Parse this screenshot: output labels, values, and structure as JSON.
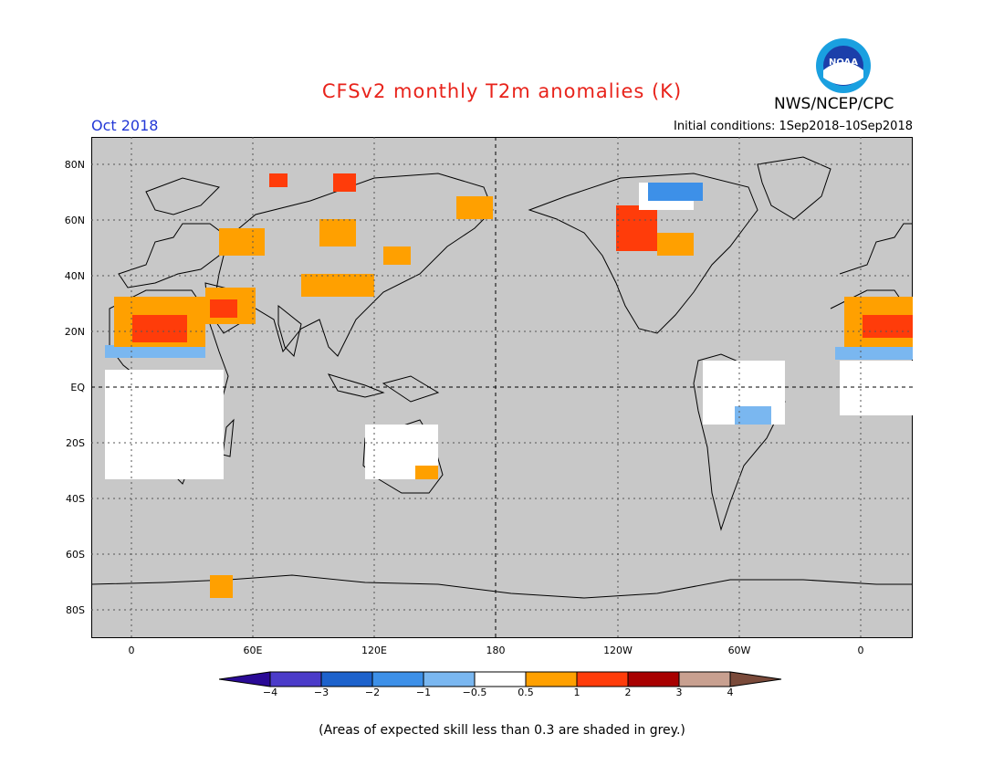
{
  "title": "CFSv2 monthly T2m anomalies (K)",
  "agency": "NWS/NCEP/CPC",
  "logo_text": "NOAA",
  "valid_month": "Oct 2018",
  "initial_conditions": "Initial conditions: 1Sep2018–10Sep2018",
  "lat_labels": [
    "80N",
    "60N",
    "40N",
    "20N",
    "EQ",
    "20S",
    "40S",
    "60S",
    "80S"
  ],
  "lon_labels": [
    "0",
    "60E",
    "120E",
    "180",
    "120W",
    "60W",
    "0"
  ],
  "colorbar": {
    "labels": [
      "−4",
      "−3",
      "−2",
      "−1",
      "−0.5",
      "0.5",
      "1",
      "2",
      "3",
      "4"
    ],
    "colors": [
      "#2a0a96",
      "#4b3bc9",
      "#1d62cc",
      "#3d90e8",
      "#7ab7f0",
      "#ffffff",
      "#ffa000",
      "#ff3c0a",
      "#a80000",
      "#c8a090",
      "#7a4a3a"
    ]
  },
  "colors": {
    "land_mask": "#c8c8c8",
    "warm_05_1": "#ffa000",
    "warm_1_2": "#ff3c0a",
    "cool_05_1": "#7ab7f0",
    "cool_1_2": "#3d90e8",
    "near_zero": "#ffffff"
  },
  "footnote": "(Areas of expected skill less than 0.3 are shaded in grey.)"
}
